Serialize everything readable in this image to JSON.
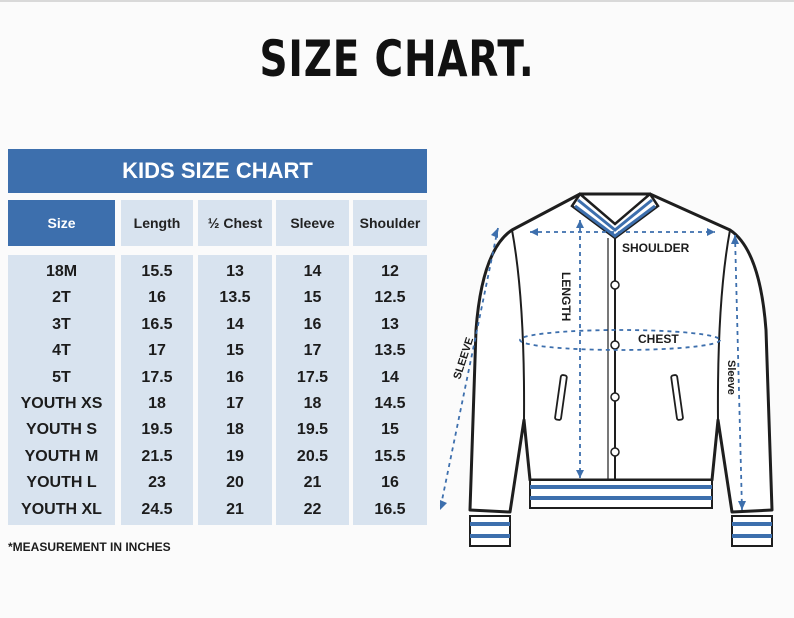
{
  "title": "SIZE CHART.",
  "banner": "KIDS SIZE CHART",
  "headers": [
    "Size",
    "Length",
    "½ Chest",
    "Sleeve",
    "Shoulder"
  ],
  "rows": [
    [
      "18M",
      "15.5",
      "13",
      "14",
      "12"
    ],
    [
      "2T",
      "16",
      "13.5",
      "15",
      "12.5"
    ],
    [
      "3T",
      "16.5",
      "14",
      "16",
      "13"
    ],
    [
      "4T",
      "17",
      "15",
      "17",
      "13.5"
    ],
    [
      "5T",
      "17.5",
      "16",
      "17.5",
      "14"
    ],
    [
      "YOUTH XS",
      "18",
      "17",
      "18",
      "14.5"
    ],
    [
      "YOUTH S",
      "19.5",
      "18",
      "19.5",
      "15"
    ],
    [
      "YOUTH M",
      "21.5",
      "19",
      "20.5",
      "15.5"
    ],
    [
      "YOUTH L",
      "23",
      "20",
      "21",
      "16"
    ],
    [
      "YOUTH XL",
      "24.5",
      "21",
      "22",
      "16.5"
    ]
  ],
  "note": "*MEASUREMENT IN INCHES",
  "diagram_labels": {
    "shoulder": "SHOULDER",
    "length": "LENGTH",
    "chest": "CHEST",
    "sleeve_left": "SLEEVE",
    "sleeve_right": "Sleeve"
  },
  "colors": {
    "accent": "#3d6fad",
    "cell_bg": "#d8e3ef"
  }
}
